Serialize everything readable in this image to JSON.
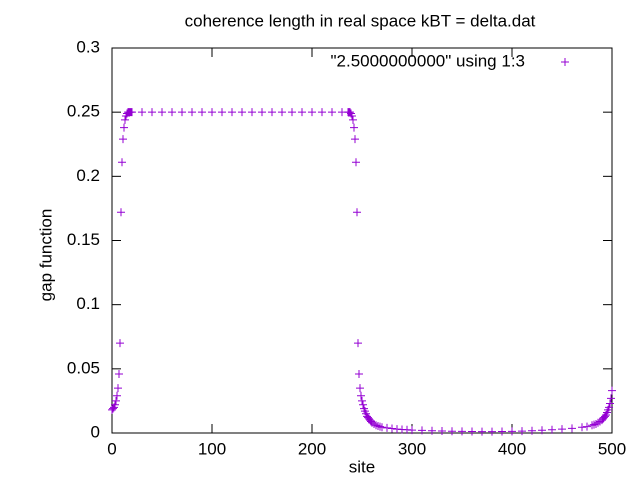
{
  "chart_data": {
    "type": "scatter",
    "title": "coherence length in real space kBT = delta.dat",
    "x_label": "site",
    "y_label": "gap function",
    "x": [
      0,
      1,
      2,
      3,
      4,
      5,
      6,
      7,
      8,
      9,
      10,
      11,
      12,
      13,
      14,
      15,
      16,
      17,
      18,
      19,
      20,
      30,
      40,
      50,
      60,
      70,
      80,
      90,
      100,
      110,
      120,
      130,
      140,
      150,
      160,
      170,
      180,
      190,
      200,
      210,
      220,
      230,
      236,
      237,
      238,
      239,
      240,
      241,
      242,
      243,
      244,
      245,
      246,
      247,
      248,
      249,
      250,
      251,
      252,
      253,
      254,
      255,
      256,
      257,
      258,
      259,
      260,
      262,
      264,
      266,
      268,
      270,
      275,
      280,
      285,
      290,
      295,
      300,
      310,
      320,
      330,
      340,
      350,
      360,
      370,
      380,
      390,
      400,
      410,
      420,
      430,
      440,
      450,
      460,
      470,
      475,
      480,
      482,
      484,
      486,
      488,
      490,
      491,
      492,
      493,
      494,
      495,
      496,
      497,
      498,
      499,
      500
    ],
    "series": [
      {
        "name": "\"2.5000000000\" using 1:3",
        "color": "#9400d3",
        "values": [
          0.018,
          0.019,
          0.02,
          0.022,
          0.025,
          0.029,
          0.035,
          0.046,
          0.07,
          0.172,
          0.211,
          0.229,
          0.238,
          0.244,
          0.247,
          0.249,
          0.25,
          0.25,
          0.25,
          0.25,
          0.25,
          0.25,
          0.25,
          0.25,
          0.25,
          0.25,
          0.25,
          0.25,
          0.25,
          0.25,
          0.25,
          0.25,
          0.25,
          0.25,
          0.25,
          0.25,
          0.25,
          0.25,
          0.25,
          0.25,
          0.25,
          0.25,
          0.25,
          0.25,
          0.25,
          0.249,
          0.247,
          0.244,
          0.238,
          0.229,
          0.211,
          0.172,
          0.07,
          0.046,
          0.035,
          0.029,
          0.025,
          0.022,
          0.019,
          0.017,
          0.015,
          0.013,
          0.012,
          0.011,
          0.01,
          0.009,
          0.008,
          0.007,
          0.006,
          0.0055,
          0.005,
          0.0045,
          0.004,
          0.0035,
          0.003,
          0.0027,
          0.0025,
          0.0022,
          0.002,
          0.0018,
          0.0016,
          0.0014,
          0.0013,
          0.0012,
          0.0011,
          0.0011,
          0.0012,
          0.0013,
          0.0015,
          0.0018,
          0.0021,
          0.0025,
          0.003,
          0.0036,
          0.0045,
          0.005,
          0.006,
          0.0065,
          0.007,
          0.008,
          0.009,
          0.01,
          0.011,
          0.012,
          0.013,
          0.014,
          0.016,
          0.018,
          0.02,
          0.023,
          0.027,
          0.033
        ]
      }
    ],
    "xlim": [
      0,
      500
    ],
    "xticks": [
      0,
      100,
      200,
      300,
      400,
      500
    ],
    "ylim": [
      0,
      0.3
    ],
    "yticks": [
      0,
      0.05,
      0.1,
      0.15,
      0.2,
      0.25,
      0.3
    ],
    "legend": "top right",
    "grid": false
  }
}
